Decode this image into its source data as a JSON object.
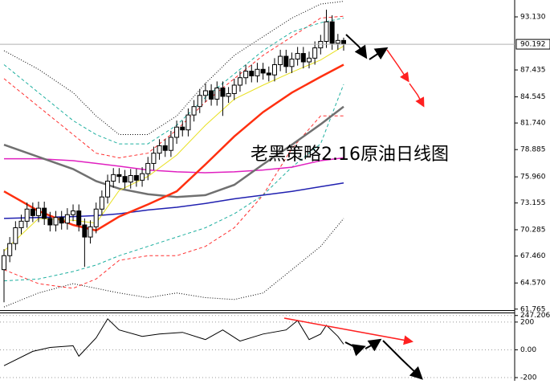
{
  "chart_data": [
    {
      "type": "candlestick",
      "annotation": "老黑策略2.16原油日线图",
      "annotation_color": "#ff2020",
      "up_color": "#ffffff",
      "down_color": "#000000",
      "open": [
        66.0,
        67.5,
        68.8,
        70.5,
        71.2,
        72.5,
        71.8,
        72.6,
        71.5,
        70.8,
        71.6,
        71.0,
        71.9,
        72.3,
        70.8,
        69.5,
        70.6,
        72.5,
        73.8,
        75.5,
        76.2,
        76.0,
        75.4,
        76.1,
        75.6,
        76.3,
        77.4,
        78.5,
        79.3,
        78.8,
        80.2,
        81.3,
        81.0,
        82.6,
        83.5,
        84.7,
        85.2,
        84.3,
        85.5,
        84.6,
        84.9,
        85.8,
        86.6,
        87.3,
        86.8,
        87.5,
        87.1,
        86.9,
        88.0,
        88.9,
        87.8,
        88.6,
        89.2,
        88.3,
        88.7,
        89.8,
        90.5,
        92.6,
        90.3,
        90.6
      ],
      "high": [
        68.2,
        69.5,
        71.2,
        71.9,
        73.2,
        73.2,
        73.3,
        73.3,
        72.2,
        72.3,
        72.3,
        72.6,
        73.0,
        73.0,
        71.5,
        71.3,
        73.2,
        74.5,
        76.2,
        76.9,
        76.9,
        76.7,
        76.8,
        76.8,
        77.0,
        78.1,
        79.2,
        80.0,
        80.0,
        80.9,
        82.0,
        82.0,
        83.3,
        84.2,
        85.4,
        86.0,
        85.9,
        86.2,
        86.2,
        85.6,
        86.5,
        87.3,
        88.0,
        88.0,
        88.2,
        88.2,
        87.8,
        88.7,
        89.6,
        89.6,
        89.3,
        89.9,
        89.9,
        89.4,
        90.5,
        91.2,
        93.9,
        93.3,
        91.3,
        90.9
      ],
      "low": [
        62.5,
        66.8,
        68.1,
        69.8,
        70.5,
        71.1,
        71.1,
        70.8,
        70.1,
        70.1,
        70.3,
        70.3,
        71.2,
        70.1,
        66.3,
        68.8,
        69.9,
        71.8,
        73.1,
        74.8,
        75.3,
        74.7,
        74.7,
        74.9,
        74.9,
        75.6,
        76.7,
        77.8,
        78.1,
        78.1,
        79.5,
        80.3,
        80.3,
        81.9,
        82.8,
        84.0,
        83.6,
        83.6,
        82.5,
        83.9,
        84.2,
        85.1,
        85.9,
        86.1,
        86.1,
        86.4,
        86.2,
        86.2,
        87.3,
        87.1,
        87.1,
        87.9,
        87.6,
        87.6,
        88.0,
        89.1,
        89.8,
        89.6,
        89.6,
        89.5
      ],
      "close": [
        67.5,
        68.8,
        70.5,
        71.2,
        72.5,
        71.8,
        72.6,
        71.5,
        70.8,
        71.6,
        71.0,
        71.9,
        72.3,
        70.8,
        69.5,
        70.6,
        72.5,
        73.8,
        75.5,
        76.2,
        76.0,
        75.4,
        76.1,
        75.6,
        76.3,
        77.4,
        78.5,
        79.3,
        78.8,
        80.2,
        81.3,
        81.0,
        82.6,
        83.5,
        84.7,
        85.2,
        84.3,
        85.5,
        84.6,
        84.9,
        85.8,
        86.6,
        87.3,
        86.8,
        87.5,
        87.1,
        86.9,
        88.0,
        88.9,
        87.8,
        88.6,
        89.2,
        88.3,
        88.7,
        89.8,
        90.5,
        92.6,
        90.3,
        90.6,
        90.2
      ],
      "series": [
        {
          "color": "#000000",
          "dash": "dotted",
          "width": 1,
          "x": [
            0,
            6,
            12,
            16,
            20,
            25,
            30,
            35,
            40,
            45,
            50,
            55,
            59
          ],
          "values": [
            89.5,
            87.5,
            85.0,
            82.5,
            80.5,
            80.5,
            82.5,
            86.0,
            89.0,
            91.0,
            93.0,
            94.5,
            94.8
          ]
        },
        {
          "color": "#000000",
          "dash": "dotted",
          "width": 1,
          "x": [
            0,
            6,
            12,
            16,
            20,
            25,
            30,
            35,
            40,
            45,
            50,
            55,
            59
          ],
          "values": [
            62.0,
            63.5,
            64.5,
            64.0,
            63.5,
            63.0,
            63.5,
            63.0,
            62.8,
            63.5,
            66.0,
            68.5,
            71.5
          ]
        },
        {
          "color": "#ff3030",
          "dash": "dashed",
          "width": 1,
          "x": [
            0,
            6,
            12,
            16,
            20,
            25,
            30,
            35,
            40,
            45,
            50,
            55,
            59
          ],
          "values": [
            86.5,
            83.5,
            80.5,
            78.5,
            78.0,
            78.5,
            81.0,
            84.0,
            86.5,
            89.0,
            91.0,
            93.0,
            93.2
          ]
        },
        {
          "color": "#ff3030",
          "dash": "dashed",
          "width": 1,
          "x": [
            0,
            6,
            12,
            16,
            20,
            25,
            30,
            35,
            40,
            45,
            50,
            55,
            59
          ],
          "values": [
            66.0,
            64.5,
            64.0,
            65.0,
            67.0,
            67.5,
            67.5,
            68.5,
            70.5,
            74.0,
            79.0,
            82.5,
            82.5
          ]
        },
        {
          "color": "#20b0a0",
          "dash": "dashed",
          "width": 1,
          "x": [
            0,
            6,
            12,
            16,
            20,
            25,
            30,
            35,
            40,
            45,
            50,
            55,
            59
          ],
          "values": [
            88.0,
            85.0,
            82.0,
            80.5,
            79.5,
            79.5,
            81.5,
            84.5,
            87.0,
            89.5,
            91.5,
            92.5,
            93.0
          ]
        },
        {
          "color": "#20b0a0",
          "dash": "dashed",
          "width": 1,
          "x": [
            0,
            6,
            12,
            16,
            20,
            25,
            30,
            35,
            40,
            45,
            50,
            55,
            59
          ],
          "values": [
            64.8,
            65.0,
            65.8,
            66.5,
            67.5,
            68.5,
            69.5,
            70.5,
            72.0,
            74.0,
            77.0,
            79.5,
            85.9
          ]
        },
        {
          "color": "#2020b0",
          "dash": "solid",
          "width": 1.5,
          "x": [
            0,
            6,
            12,
            16,
            20,
            25,
            30,
            35,
            40,
            45,
            50,
            55,
            59
          ],
          "values": [
            71.5,
            71.6,
            71.7,
            71.8,
            72.0,
            72.4,
            72.7,
            73.1,
            73.6,
            74.0,
            74.4,
            74.9,
            75.3
          ]
        },
        {
          "color": "#e020c0",
          "dash": "solid",
          "width": 1.5,
          "x": [
            0,
            6,
            12,
            16,
            20,
            25,
            30,
            35,
            40,
            45,
            50,
            55,
            59
          ],
          "values": [
            77.9,
            77.9,
            77.7,
            77.4,
            77.1,
            76.7,
            76.5,
            76.4,
            76.5,
            76.7,
            77.0,
            77.7,
            78.0
          ]
        },
        {
          "color": "#707070",
          "dash": "solid",
          "width": 2.5,
          "x": [
            0,
            6,
            12,
            16,
            20,
            25,
            30,
            35,
            40,
            45,
            50,
            55,
            59
          ],
          "values": [
            79.4,
            78.1,
            76.8,
            75.5,
            74.7,
            74.1,
            73.8,
            74.0,
            75.1,
            77.3,
            79.4,
            81.6,
            83.5
          ]
        },
        {
          "color": "#ff3010",
          "dash": "solid",
          "width": 2.5,
          "x": [
            0,
            6,
            12,
            16,
            20,
            25,
            30,
            35,
            40,
            45,
            50,
            55,
            59
          ],
          "values": [
            74.4,
            72.3,
            70.8,
            70.2,
            71.7,
            73.0,
            74.4,
            77.3,
            80.3,
            82.9,
            85.0,
            86.7,
            88.0
          ]
        },
        {
          "color": "#e8e020",
          "dash": "solid",
          "width": 1,
          "x": [
            0,
            6,
            12,
            16,
            20,
            25,
            30,
            35,
            40,
            45,
            50,
            55,
            59
          ],
          "values": [
            68.0,
            71.5,
            71.3,
            71.0,
            74.5,
            76.0,
            78.3,
            81.5,
            84.3,
            85.8,
            87.2,
            88.5,
            90.0
          ]
        }
      ],
      "last_price": 90.192,
      "ylim": [
        61.66,
        94.94
      ],
      "yticks": [
        {
          "value": 93.13,
          "label": "93.130"
        },
        87.435,
        84.545,
        {
          "value": 81.74,
          "label": "81.740"
        },
        78.885,
        {
          "value": 75.96,
          "label": "75.960"
        },
        73.155,
        70.285,
        {
          "value": 67.46,
          "label": "67.460"
        },
        {
          "value": 64.57,
          "label": "64.570"
        },
        61.765
      ]
    },
    {
      "type": "line",
      "color": "#000000",
      "x": [
        0,
        5,
        8,
        12,
        13,
        16,
        18,
        20,
        24,
        27,
        31,
        35,
        38,
        41,
        45,
        49,
        51,
        53,
        55,
        56,
        58,
        59
      ],
      "values": [
        -114,
        -11,
        17,
        29,
        -46,
        86,
        223,
        143,
        97,
        114,
        126,
        74,
        143,
        63,
        114,
        143,
        211,
        74,
        114,
        177,
        97,
        40
      ],
      "ylim": [
        -223,
        263
      ],
      "yticks": [
        247.206,
        200,
        {
          "value": 0,
          "label": "0.00"
        },
        -200
      ]
    }
  ]
}
